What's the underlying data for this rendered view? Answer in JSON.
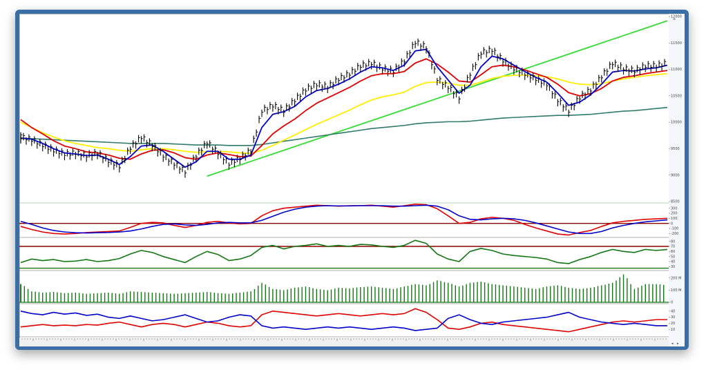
{
  "colors": {
    "frame": "#3a6ea5",
    "price_bar": "#000000",
    "ma_fast": "#0000cc",
    "ma_mid": "#e00000",
    "ma_slow": "#ffee00",
    "ma_long": "#2f7a6a",
    "trendline": "#33dd33",
    "macd_line": "#e00000",
    "macd_signal": "#0000cc",
    "rsi_line": "#117711",
    "rsi_ref": "#8b0000",
    "volume": "#117711",
    "di_plus": "#0000cc",
    "di_minus": "#e00000"
  },
  "window": {
    "title_marker": "≥",
    "nav_left": "◂",
    "nav_right": "▸"
  },
  "chart_data": [
    {
      "panel": "price",
      "type": "line",
      "yticks": [
        "12000",
        "11500",
        "11000",
        "10500",
        "10000",
        "9500",
        "9000",
        "8500"
      ],
      "ylim": [
        8500,
        12000
      ],
      "grid": false,
      "legend": "none",
      "x": [
        0,
        4,
        8,
        12,
        16,
        20,
        24,
        28,
        32,
        36,
        40,
        44,
        48,
        52,
        56,
        60,
        64,
        68,
        72,
        76,
        80,
        84,
        88,
        92,
        96,
        100,
        104,
        108,
        112,
        116,
        120,
        124,
        128,
        132,
        136,
        140,
        144,
        148,
        152,
        156,
        160,
        164,
        168,
        172,
        176,
        180,
        184,
        188,
        192,
        196,
        200,
        204,
        208,
        212,
        216,
        220,
        224,
        228,
        232,
        236
      ],
      "series": [
        {
          "role": "close",
          "values": [
            9700,
            9650,
            9550,
            9450,
            9380,
            9400,
            9350,
            9400,
            9250,
            9150,
            9500,
            9700,
            9550,
            9350,
            9200,
            9050,
            9350,
            9600,
            9400,
            9200,
            9300,
            9450,
            10200,
            10300,
            10200,
            10400,
            10600,
            10700,
            10650,
            10800,
            10900,
            11050,
            11100,
            11000,
            10950,
            11150,
            11500,
            11400,
            10800,
            10650,
            10450,
            10900,
            11300,
            11350,
            11150,
            11000,
            10900,
            10800,
            10700,
            10400,
            10200,
            10450,
            10600,
            10850,
            11100,
            11000,
            10950,
            11050,
            11050,
            11100
          ]
        },
        {
          "role": "ma_fast",
          "values": [
            9700,
            9680,
            9600,
            9500,
            9420,
            9400,
            9370,
            9380,
            9300,
            9200,
            9350,
            9550,
            9570,
            9450,
            9300,
            9150,
            9250,
            9450,
            9450,
            9300,
            9300,
            9380,
            9900,
            10150,
            10200,
            10300,
            10480,
            10600,
            10640,
            10720,
            10820,
            10950,
            11050,
            11030,
            10980,
            11080,
            11350,
            11380,
            11050,
            10800,
            10550,
            10700,
            11050,
            11250,
            11200,
            11080,
            10960,
            10850,
            10760,
            10550,
            10320,
            10380,
            10520,
            10720,
            10950,
            10980,
            10970,
            11010,
            11030,
            11080
          ]
        },
        {
          "role": "ma_mid",
          "values": [
            10050,
            9900,
            9780,
            9650,
            9550,
            9500,
            9440,
            9420,
            9380,
            9320,
            9300,
            9400,
            9470,
            9480,
            9420,
            9330,
            9300,
            9380,
            9420,
            9390,
            9350,
            9360,
            9560,
            9780,
            9930,
            10060,
            10220,
            10360,
            10460,
            10560,
            10660,
            10780,
            10880,
            10920,
            10920,
            10960,
            11120,
            11200,
            11100,
            10950,
            10780,
            10760,
            10900,
            11050,
            11080,
            11050,
            10990,
            10920,
            10850,
            10720,
            10560,
            10500,
            10540,
            10640,
            10780,
            10850,
            10880,
            10920,
            10950,
            10980
          ]
        },
        {
          "role": "ma_slow",
          "values": [
            10000,
            9900,
            9800,
            9720,
            9650,
            9600,
            9560,
            9520,
            9500,
            9470,
            9450,
            9480,
            9500,
            9500,
            9480,
            9450,
            9430,
            9440,
            9450,
            9440,
            9420,
            9410,
            9470,
            9560,
            9660,
            9760,
            9860,
            9960,
            10050,
            10140,
            10230,
            10330,
            10420,
            10480,
            10520,
            10570,
            10680,
            10750,
            10760,
            10740,
            10700,
            10700,
            10760,
            10830,
            10870,
            10890,
            10890,
            10880,
            10860,
            10820,
            10760,
            10720,
            10710,
            10730,
            10780,
            10820,
            10850,
            10880,
            10900,
            10920
          ]
        },
        {
          "role": "ma_long",
          "values": [
            9700,
            9690,
            9680,
            9670,
            9660,
            9650,
            9640,
            9630,
            9620,
            9610,
            9600,
            9600,
            9600,
            9600,
            9590,
            9580,
            9570,
            9570,
            9570,
            9560,
            9560,
            9560,
            9580,
            9610,
            9640,
            9670,
            9700,
            9730,
            9760,
            9790,
            9820,
            9850,
            9880,
            9900,
            9920,
            9940,
            9970,
            9990,
            10000,
            10010,
            10010,
            10020,
            10040,
            10060,
            10080,
            10090,
            10100,
            10110,
            10120,
            10130,
            10130,
            10140,
            10150,
            10170,
            10190,
            10210,
            10220,
            10240,
            10260,
            10280
          ]
        },
        {
          "role": "trendline",
          "values": [
            null,
            null,
            null,
            null,
            null,
            null,
            null,
            null,
            null,
            null,
            null,
            null,
            null,
            null,
            null,
            null,
            null,
            8980,
            9050,
            9120,
            9190,
            9260,
            9330,
            9400,
            9470,
            9540,
            9610,
            9680,
            9750,
            9820,
            9890,
            9960,
            10030,
            10100,
            10170,
            10240,
            10310,
            10380,
            10450,
            10520,
            10590,
            10660,
            10730,
            10800,
            10870,
            10940,
            11010,
            11080,
            11150,
            11220,
            11290,
            11360,
            11430,
            11500,
            11570,
            11640,
            11710,
            11780,
            11850,
            11920
          ]
        }
      ]
    },
    {
      "panel": "macd",
      "type": "line",
      "yticks": [
        "300",
        "200",
        "100",
        "0",
        "-100",
        "-200"
      ],
      "ylim": [
        -250,
        350
      ],
      "x": [
        0,
        4,
        8,
        12,
        16,
        20,
        24,
        28,
        32,
        36,
        40,
        44,
        48,
        52,
        56,
        60,
        64,
        68,
        72,
        76,
        80,
        84,
        88,
        92,
        96,
        100,
        104,
        108,
        112,
        116,
        120,
        124,
        128,
        132,
        136,
        140,
        144,
        148,
        152,
        156,
        160,
        164,
        168,
        172,
        176,
        180,
        184,
        188,
        192,
        196,
        200,
        204,
        208,
        212,
        216,
        220,
        224,
        228,
        232,
        236
      ],
      "series": [
        {
          "role": "macd",
          "values": [
            -60,
            -120,
            -170,
            -200,
            -210,
            -200,
            -180,
            -170,
            -160,
            -150,
            -80,
            0,
            20,
            10,
            -40,
            -80,
            -40,
            20,
            40,
            10,
            -10,
            0,
            150,
            250,
            300,
            320,
            340,
            360,
            350,
            340,
            350,
            350,
            360,
            340,
            320,
            350,
            380,
            370,
            290,
            150,
            0,
            20,
            90,
            120,
            100,
            60,
            -20,
            -90,
            -150,
            -210,
            -230,
            -180,
            -140,
            -60,
            10,
            40,
            60,
            80,
            90,
            100
          ]
        },
        {
          "role": "signal",
          "values": [
            40,
            -20,
            -90,
            -140,
            -170,
            -185,
            -190,
            -185,
            -180,
            -170,
            -150,
            -110,
            -60,
            -20,
            -10,
            -30,
            -40,
            -20,
            10,
            20,
            10,
            10,
            60,
            140,
            220,
            280,
            320,
            340,
            350,
            345,
            345,
            350,
            350,
            350,
            340,
            340,
            350,
            360,
            340,
            270,
            150,
            80,
            70,
            90,
            100,
            90,
            60,
            10,
            -50,
            -110,
            -170,
            -200,
            -200,
            -160,
            -90,
            -40,
            0,
            30,
            50,
            70
          ]
        }
      ],
      "reference": [
        0
      ]
    },
    {
      "panel": "rsi",
      "type": "line",
      "yticks": [
        "80",
        "70",
        "60",
        "50",
        "40",
        "30"
      ],
      "ylim": [
        25,
        85
      ],
      "x": [
        0,
        4,
        8,
        12,
        16,
        20,
        24,
        28,
        32,
        36,
        40,
        44,
        48,
        52,
        56,
        60,
        64,
        68,
        72,
        76,
        80,
        84,
        88,
        92,
        96,
        100,
        104,
        108,
        112,
        116,
        120,
        124,
        128,
        132,
        136,
        140,
        144,
        148,
        152,
        156,
        160,
        164,
        168,
        172,
        176,
        180,
        184,
        188,
        192,
        196,
        200,
        204,
        208,
        212,
        216,
        220,
        224,
        228,
        232,
        236
      ],
      "series": [
        {
          "role": "rsi",
          "values": [
            38,
            45,
            42,
            44,
            40,
            41,
            44,
            40,
            42,
            46,
            55,
            62,
            58,
            50,
            44,
            38,
            50,
            60,
            54,
            42,
            45,
            52,
            68,
            72,
            65,
            70,
            72,
            75,
            70,
            72,
            70,
            74,
            73,
            70,
            68,
            72,
            82,
            76,
            55,
            45,
            40,
            60,
            66,
            62,
            55,
            52,
            50,
            48,
            45,
            38,
            36,
            44,
            50,
            58,
            64,
            60,
            58,
            64,
            62,
            64
          ]
        }
      ],
      "reference": [
        70
      ]
    },
    {
      "panel": "volume",
      "type": "bar",
      "yticks": [
        "200 M",
        "100 M",
        "0"
      ],
      "ylim": [
        0,
        250
      ],
      "x": [
        0,
        4,
        8,
        12,
        16,
        20,
        24,
        28,
        32,
        36,
        40,
        44,
        48,
        52,
        56,
        60,
        64,
        68,
        72,
        76,
        80,
        84,
        88,
        92,
        96,
        100,
        104,
        108,
        112,
        116,
        120,
        124,
        128,
        132,
        136,
        140,
        144,
        148,
        152,
        156,
        160,
        164,
        168,
        172,
        176,
        180,
        184,
        188,
        192,
        196,
        200,
        204,
        208,
        212,
        216,
        220,
        224,
        228,
        232,
        236
      ],
      "values": [
        150,
        90,
        80,
        85,
        75,
        80,
        70,
        75,
        80,
        70,
        90,
        85,
        80,
        75,
        70,
        75,
        80,
        85,
        75,
        70,
        80,
        90,
        160,
        110,
        100,
        120,
        130,
        110,
        100,
        120,
        115,
        125,
        130,
        120,
        110,
        130,
        150,
        140,
        180,
        160,
        130,
        160,
        170,
        150,
        140,
        130,
        120,
        110,
        130,
        140,
        120,
        110,
        120,
        140,
        160,
        230,
        110,
        150,
        150,
        140
      ]
    },
    {
      "panel": "dmi",
      "type": "line",
      "yticks": [
        "40",
        "30",
        "20",
        "10"
      ],
      "ylim": [
        0,
        50
      ],
      "x": [
        0,
        4,
        8,
        12,
        16,
        20,
        24,
        28,
        32,
        36,
        40,
        44,
        48,
        52,
        56,
        60,
        64,
        68,
        72,
        76,
        80,
        84,
        88,
        92,
        96,
        100,
        104,
        108,
        112,
        116,
        120,
        124,
        128,
        132,
        136,
        140,
        144,
        148,
        152,
        156,
        160,
        164,
        168,
        172,
        176,
        180,
        184,
        188,
        192,
        196,
        200,
        204,
        208,
        212,
        216,
        220,
        224,
        228,
        232,
        236
      ],
      "series": [
        {
          "role": "di_plus",
          "values": [
            40,
            36,
            34,
            38,
            35,
            37,
            33,
            35,
            30,
            28,
            32,
            28,
            24,
            26,
            30,
            34,
            28,
            22,
            24,
            30,
            34,
            32,
            16,
            12,
            14,
            12,
            10,
            12,
            14,
            12,
            14,
            12,
            10,
            12,
            14,
            12,
            8,
            10,
            12,
            28,
            34,
            26,
            20,
            18,
            22,
            24,
            26,
            28,
            30,
            34,
            38,
            30,
            26,
            22,
            20,
            18,
            20,
            18,
            16,
            16
          ]
        },
        {
          "role": "di_minus",
          "values": [
            14,
            16,
            18,
            16,
            17,
            16,
            18,
            17,
            20,
            22,
            18,
            14,
            18,
            20,
            18,
            14,
            18,
            22,
            20,
            16,
            14,
            16,
            34,
            40,
            38,
            36,
            34,
            32,
            34,
            36,
            34,
            32,
            34,
            36,
            34,
            36,
            44,
            38,
            26,
            12,
            10,
            14,
            20,
            22,
            18,
            16,
            14,
            12,
            10,
            8,
            6,
            10,
            14,
            18,
            22,
            24,
            22,
            24,
            26,
            26
          ]
        }
      ]
    }
  ]
}
